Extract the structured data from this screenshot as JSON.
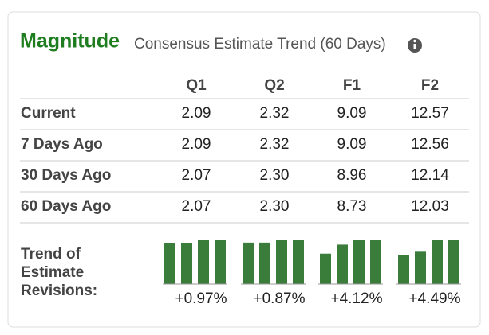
{
  "header": {
    "title": "Magnitude",
    "subtitle": "Consensus Estimate Trend (60 Days)"
  },
  "table": {
    "columns": [
      "Q1",
      "Q2",
      "F1",
      "F2"
    ],
    "rows": [
      {
        "label": "Current",
        "values": [
          "2.09",
          "2.32",
          "9.09",
          "12.57"
        ]
      },
      {
        "label": "7 Days Ago",
        "values": [
          "2.09",
          "2.32",
          "9.09",
          "12.56"
        ]
      },
      {
        "label": "30 Days Ago",
        "values": [
          "2.07",
          "2.30",
          "8.96",
          "12.14"
        ]
      },
      {
        "label": "60 Days Ago",
        "values": [
          "2.07",
          "2.30",
          "8.73",
          "12.03"
        ]
      }
    ]
  },
  "trend": {
    "label": "Trend of Estimate Revisions:",
    "changes": [
      "+0.97%",
      "+0.87%",
      "+4.12%",
      "+4.49%"
    ]
  }
}
